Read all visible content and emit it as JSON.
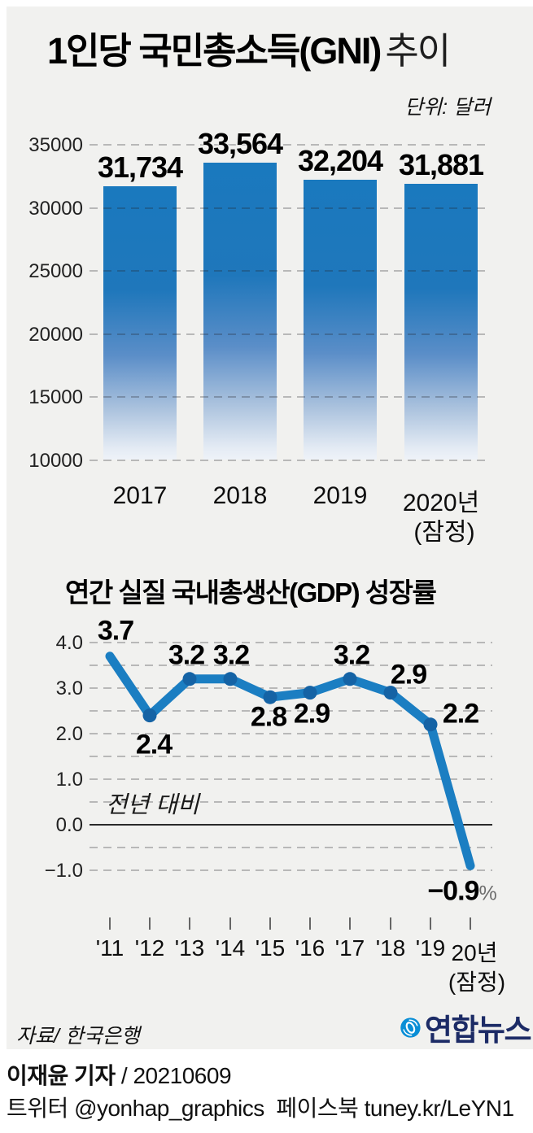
{
  "header": {
    "title_main": "1인당 국민총소득(GNI)",
    "title_suffix": "추이"
  },
  "chart_data": [
    {
      "type": "bar",
      "title": "1인당 국민총소득(GNI) 추이",
      "unit_label": "단위: 달러",
      "categories": [
        "2017",
        "2018",
        "2019",
        "2020년"
      ],
      "category_subs": [
        "",
        "",
        "",
        "(잠정)"
      ],
      "values": [
        31734,
        33564,
        32204,
        31881
      ],
      "value_labels": [
        "31,734",
        "33,564",
        "32,204",
        "31,881"
      ],
      "ylim": [
        10000,
        35000
      ],
      "yticks": [
        35000,
        30000,
        25000,
        20000,
        15000,
        10000
      ],
      "grid": "horizontal dashed",
      "legend": "none",
      "bar_color": "#1a79be",
      "bar_fade_color": "#eef2f8"
    },
    {
      "type": "line",
      "title": "연간 실질 국내총생산(GDP) 성장률",
      "annotation": "전년 대비",
      "categories": [
        "'11",
        "'12",
        "'13",
        "'14",
        "'15",
        "'16",
        "'17",
        "'18",
        "'19",
        "20년"
      ],
      "last_category_sub": "(잠정)",
      "values": [
        3.7,
        2.4,
        3.2,
        3.2,
        2.8,
        2.9,
        3.2,
        2.9,
        2.2,
        -0.9
      ],
      "value_labels": [
        "3.7",
        "2.4",
        "3.2",
        "3.2",
        "2.8",
        "2.9",
        "3.2",
        "2.9",
        "2.2",
        "−0.9"
      ],
      "last_value_suffix": "%",
      "ylim": [
        -1.5,
        4.3
      ],
      "yticks": [
        4.0,
        3.0,
        2.0,
        1.0,
        0.0,
        -1.0
      ],
      "ytick_labels": [
        "4.0",
        "3.0",
        "2.0",
        "1.0",
        "0.0",
        "−1.0"
      ],
      "grid": "horizontal dashed every 0.5, solid zero line",
      "legend": "none",
      "line_color": "#1b7ec2",
      "dot_color": "#1563a5"
    }
  ],
  "footer": {
    "source": "자료/ 한국은행",
    "logo_text": "연합뉴스",
    "logo_color": "#0a8ed6",
    "logo_text_color": "#1c2b66"
  },
  "credits": {
    "byline": "이재윤 기자",
    "byline_sep": " / ",
    "date": "20210609",
    "twitter_label": "트위터",
    "twitter_handle": "@yonhap_graphics",
    "facebook_label": "페이스북",
    "facebook_url": "tuney.kr/LeYN1"
  }
}
